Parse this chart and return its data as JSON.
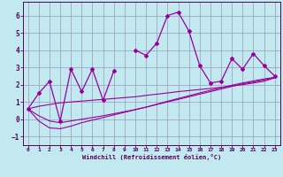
{
  "xlabel": "Windchill (Refroidissement éolien,°C)",
  "background_color": "#c2e8f0",
  "grid_color": "#9999bb",
  "line_color": "#990099",
  "x_data": [
    0,
    1,
    2,
    3,
    4,
    5,
    6,
    7,
    8,
    9,
    10,
    11,
    12,
    13,
    14,
    15,
    16,
    17,
    18,
    19,
    20,
    21,
    22,
    23
  ],
  "y_main": [
    0.6,
    1.5,
    2.2,
    -0.1,
    2.9,
    1.6,
    2.9,
    1.1,
    2.8,
    null,
    4.0,
    3.7,
    4.4,
    6.0,
    6.2,
    5.1,
    3.1,
    2.1,
    2.2,
    3.5,
    2.9,
    3.8,
    3.1,
    2.5
  ],
  "y_line1": [
    0.6,
    0.75,
    0.85,
    0.95,
    1.0,
    1.05,
    1.1,
    1.15,
    1.2,
    1.25,
    1.3,
    1.38,
    1.45,
    1.52,
    1.6,
    1.66,
    1.72,
    1.78,
    1.85,
    1.92,
    2.0,
    2.1,
    2.2,
    2.4
  ],
  "y_line2": [
    0.6,
    0.2,
    -0.1,
    -0.2,
    -0.1,
    0.0,
    0.1,
    0.2,
    0.32,
    0.44,
    0.56,
    0.7,
    0.85,
    1.0,
    1.15,
    1.3,
    1.45,
    1.6,
    1.75,
    1.9,
    2.05,
    2.15,
    2.28,
    2.4
  ],
  "y_line3": [
    0.6,
    -0.1,
    -0.5,
    -0.55,
    -0.4,
    -0.2,
    -0.05,
    0.1,
    0.25,
    0.4,
    0.55,
    0.7,
    0.87,
    1.04,
    1.2,
    1.36,
    1.52,
    1.67,
    1.82,
    1.97,
    2.1,
    2.22,
    2.33,
    2.43
  ],
  "ylim": [
    -1.5,
    6.8
  ],
  "xlim": [
    -0.5,
    23.5
  ],
  "yticks": [
    -1,
    0,
    1,
    2,
    3,
    4,
    5,
    6
  ],
  "xticks": [
    0,
    1,
    2,
    3,
    4,
    5,
    6,
    7,
    8,
    9,
    10,
    11,
    12,
    13,
    14,
    15,
    16,
    17,
    18,
    19,
    20,
    21,
    22,
    23
  ]
}
